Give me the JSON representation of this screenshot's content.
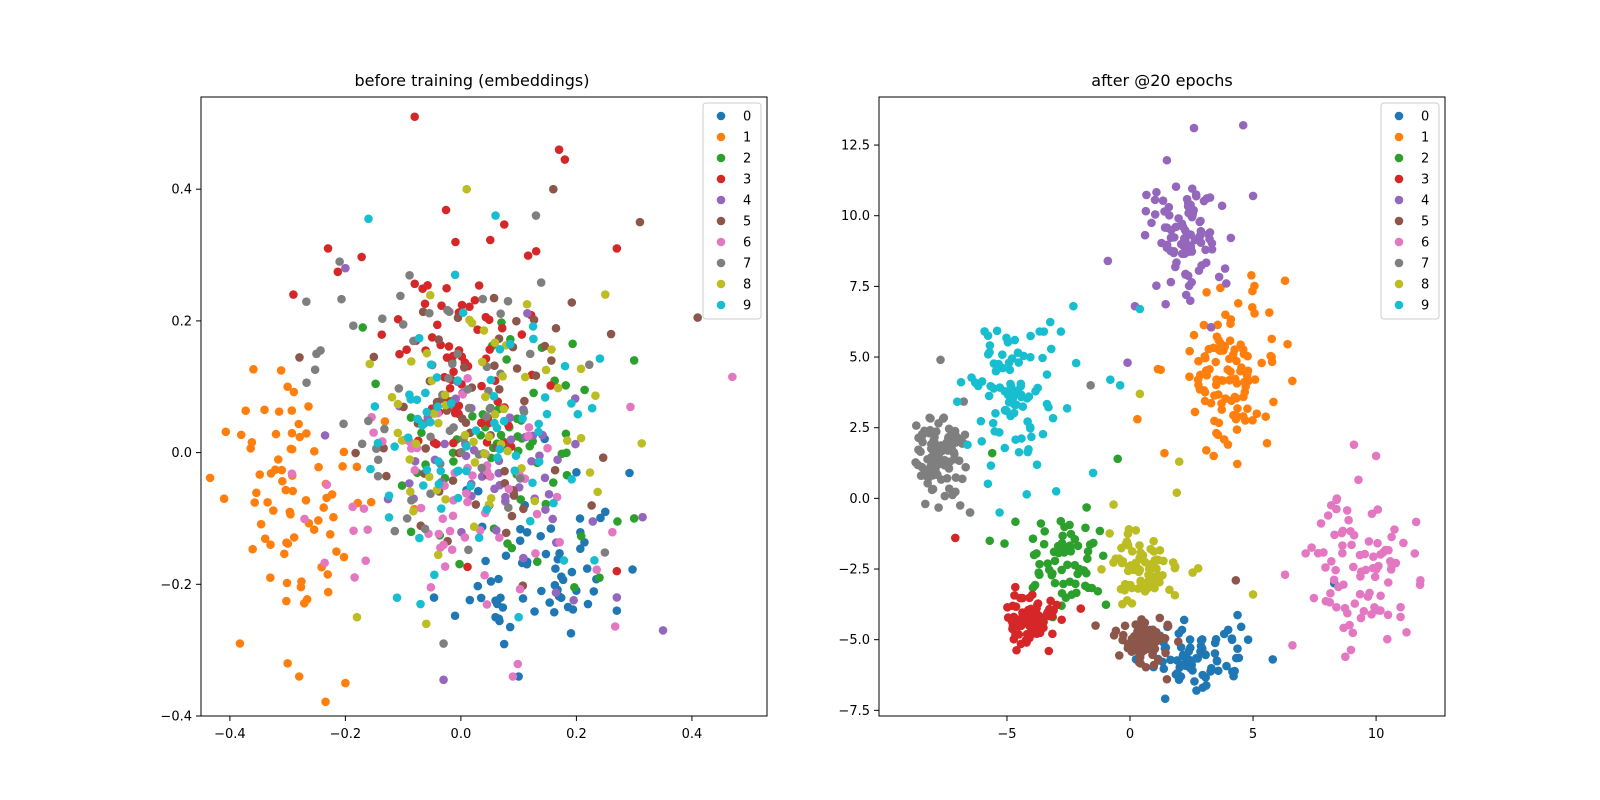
{
  "class_labels": [
    "0",
    "1",
    "2",
    "3",
    "4",
    "5",
    "6",
    "7",
    "8",
    "9"
  ],
  "colors": [
    "#1f77b4",
    "#ff7f0e",
    "#2ca02c",
    "#d62728",
    "#9467bd",
    "#8c564b",
    "#e377c2",
    "#7f7f7f",
    "#bcbd22",
    "#17becf"
  ],
  "chart_data": [
    {
      "type": "scatter",
      "title": "before training (embeddings)",
      "xlabel": "",
      "ylabel": "",
      "xlim": [
        -0.45,
        0.53
      ],
      "ylim": [
        -0.4,
        0.54
      ],
      "xticks": [
        -0.4,
        -0.2,
        0.0,
        0.2,
        0.4
      ],
      "xtick_labels": [
        "−0.4",
        "−0.2",
        "0.0",
        "0.2",
        "0.4"
      ],
      "yticks": [
        -0.4,
        -0.2,
        0.0,
        0.2,
        0.4
      ],
      "ytick_labels": [
        "−0.4",
        "−0.2",
        "0.0",
        "0.2",
        "0.4"
      ],
      "legend": "top-right",
      "series": [
        {
          "name": "0",
          "center": [
            0.13,
            -0.17
          ],
          "spread": [
            0.07,
            0.07
          ],
          "n": 60,
          "seed": 11,
          "points": [
            [
              0.2,
              -0.03
            ],
            [
              0.25,
              -0.09
            ],
            [
              0.22,
              -0.23
            ],
            [
              0.27,
              -0.24
            ],
            [
              0.1,
              -0.34
            ],
            [
              0.06,
              -0.25
            ]
          ]
        },
        {
          "name": "1",
          "center": [
            -0.28,
            -0.07
          ],
          "spread": [
            0.07,
            0.1
          ],
          "n": 75,
          "seed": 12,
          "points": [
            [
              -0.41,
              -0.07
            ],
            [
              -0.33,
              -0.19
            ],
            [
              -0.28,
              -0.34
            ],
            [
              -0.3,
              -0.32
            ],
            [
              -0.2,
              -0.35
            ],
            [
              -0.3,
              0.1
            ],
            [
              -0.34,
              0.065
            ]
          ]
        },
        {
          "name": "2",
          "center": [
            0.06,
            0.01
          ],
          "spread": [
            0.09,
            0.09
          ],
          "n": 60,
          "seed": 13,
          "points": [
            [
              0.3,
              -0.1
            ],
            [
              0.3,
              0.14
            ],
            [
              -0.17,
              0.19
            ],
            [
              0.24,
              -0.19
            ]
          ]
        },
        {
          "name": "3",
          "center": [
            0.02,
            0.15
          ],
          "spread": [
            0.08,
            0.1
          ],
          "n": 75,
          "seed": 14,
          "points": [
            [
              -0.08,
              0.51
            ],
            [
              0.17,
              0.46
            ],
            [
              0.18,
              0.445
            ],
            [
              -0.29,
              0.24
            ],
            [
              -0.23,
              0.31
            ],
            [
              0.27,
              0.31
            ],
            [
              0.27,
              -0.18
            ]
          ]
        },
        {
          "name": "4",
          "center": [
            0.08,
            -0.02
          ],
          "spread": [
            0.1,
            0.09
          ],
          "n": 55,
          "seed": 15,
          "points": [
            [
              0.35,
              -0.27
            ],
            [
              -0.2,
              0.28
            ],
            [
              0.27,
              -0.22
            ],
            [
              -0.03,
              -0.345
            ]
          ]
        },
        {
          "name": "5",
          "center": [
            0.03,
            0.05
          ],
          "spread": [
            0.1,
            0.1
          ],
          "n": 60,
          "seed": 16,
          "points": [
            [
              0.41,
              0.205
            ],
            [
              0.31,
              0.35
            ],
            [
              0.16,
              0.4
            ],
            [
              0.26,
              0.18
            ]
          ]
        },
        {
          "name": "6",
          "center": [
            -0.02,
            -0.1
          ],
          "spread": [
            0.12,
            0.08
          ],
          "n": 65,
          "seed": 17,
          "points": [
            [
              0.47,
              0.115
            ],
            [
              0.09,
              -0.34
            ],
            [
              -0.25,
              0.15
            ]
          ]
        },
        {
          "name": "7",
          "center": [
            -0.04,
            0.07
          ],
          "spread": [
            0.1,
            0.11
          ],
          "n": 60,
          "seed": 18,
          "points": [
            [
              -0.25,
              0.15
            ],
            [
              -0.21,
              0.29
            ],
            [
              0.13,
              0.36
            ],
            [
              -0.03,
              -0.29
            ]
          ]
        },
        {
          "name": "8",
          "center": [
            0.04,
            0.06
          ],
          "spread": [
            0.1,
            0.09
          ],
          "n": 55,
          "seed": 19,
          "points": [
            [
              0.25,
              0.24
            ],
            [
              0.01,
              0.4
            ],
            [
              -0.18,
              -0.25
            ],
            [
              -0.06,
              -0.26
            ]
          ]
        },
        {
          "name": "9",
          "center": [
            0.02,
            0.02
          ],
          "spread": [
            0.1,
            0.1
          ],
          "n": 70,
          "seed": 20,
          "points": [
            [
              -0.16,
              0.355
            ],
            [
              0.06,
              0.36
            ],
            [
              -0.01,
              0.27
            ],
            [
              0.1,
              -0.25
            ],
            [
              -0.07,
              -0.23
            ]
          ]
        }
      ]
    },
    {
      "type": "scatter",
      "title": "after @20 epochs",
      "xlabel": "",
      "ylabel": "",
      "xlim": [
        -10.2,
        12.8
      ],
      "ylim": [
        -7.7,
        14.2
      ],
      "xticks": [
        -5,
        0,
        5,
        10
      ],
      "xtick_labels": [
        "−5",
        "0",
        "5",
        "10"
      ],
      "yticks": [
        -7.5,
        -5.0,
        -2.5,
        0.0,
        2.5,
        5.0,
        7.5,
        10.0,
        12.5
      ],
      "ytick_labels": [
        "−7.5",
        "−5.0",
        "−2.5",
        "0.0",
        "2.5",
        "5.0",
        "7.5",
        "10.0",
        "12.5"
      ],
      "legend": "top-right",
      "series": [
        {
          "name": "0",
          "center": [
            2.6,
            -5.6
          ],
          "spread": [
            1.1,
            0.6
          ],
          "n": 75,
          "seed": 31,
          "points": [
            [
              5.8,
              -5.7
            ],
            [
              4.8,
              -5.0
            ],
            [
              2.7,
              -6.8
            ],
            [
              8.3,
              -3.0
            ]
          ]
        },
        {
          "name": "1",
          "center": [
            3.9,
            4.6
          ],
          "spread": [
            1.0,
            1.4
          ],
          "n": 110,
          "seed": 32,
          "points": [
            [
              6.3,
              7.7
            ],
            [
              1.4,
              1.6
            ],
            [
              3.1,
              1.7
            ],
            [
              0.3,
              2.8
            ],
            [
              4.6,
              2.9
            ]
          ]
        },
        {
          "name": "2",
          "center": [
            -2.6,
            -2.4
          ],
          "spread": [
            0.7,
            0.8
          ],
          "n": 65,
          "seed": 33,
          "points": [
            [
              -6.5,
              -0.5
            ],
            [
              -5.7,
              -1.5
            ],
            [
              -5.1,
              -1.6
            ],
            [
              -0.5,
              1.4
            ],
            [
              -5.6,
              1.6
            ]
          ]
        },
        {
          "name": "3",
          "center": [
            -4.1,
            -4.3
          ],
          "spread": [
            0.55,
            0.45
          ],
          "n": 90,
          "seed": 34,
          "points": [
            [
              -7.1,
              -1.4
            ],
            [
              -3.3,
              -5.4
            ],
            [
              -2.0,
              -3.9
            ]
          ]
        },
        {
          "name": "4",
          "center": [
            2.3,
            9.3
          ],
          "spread": [
            0.8,
            1.1
          ],
          "n": 95,
          "seed": 35,
          "points": [
            [
              2.6,
              13.1
            ],
            [
              4.6,
              13.2
            ],
            [
              -0.9,
              8.4
            ],
            [
              -0.1,
              4.8
            ],
            [
              5.0,
              10.7
            ],
            [
              0.2,
              6.8
            ]
          ]
        },
        {
          "name": "5",
          "center": [
            0.6,
            -5.0
          ],
          "spread": [
            0.5,
            0.4
          ],
          "n": 80,
          "seed": 36,
          "points": [
            [
              -1.4,
              -4.5
            ],
            [
              1.5,
              -6.4
            ],
            [
              4.3,
              -2.9
            ]
          ]
        },
        {
          "name": "6",
          "center": [
            9.5,
            -2.5
          ],
          "spread": [
            1.0,
            1.3
          ],
          "n": 85,
          "seed": 37,
          "points": [
            [
              9.1,
              1.9
            ],
            [
              10.0,
              1.5
            ],
            [
              6.6,
              -5.2
            ],
            [
              11.8,
              -2.9
            ],
            [
              6.3,
              -2.7
            ]
          ]
        },
        {
          "name": "7",
          "center": [
            -7.8,
            1.6
          ],
          "spread": [
            0.55,
            0.7
          ],
          "n": 95,
          "seed": 38,
          "points": [
            [
              -7.7,
              4.9
            ],
            [
              -6.5,
              -0.5
            ],
            [
              -6.9,
              -0.25
            ],
            [
              -1.6,
              4.0
            ]
          ]
        },
        {
          "name": "8",
          "center": [
            0.5,
            -2.4
          ],
          "spread": [
            0.7,
            0.6
          ],
          "n": 80,
          "seed": 39,
          "points": [
            [
              2.0,
              1.3
            ],
            [
              1.9,
              0.2
            ],
            [
              0.4,
              3.7
            ],
            [
              5.0,
              -3.4
            ]
          ]
        },
        {
          "name": "9",
          "center": [
            -4.8,
            3.7
          ],
          "spread": [
            0.9,
            1.2
          ],
          "n": 95,
          "seed": 40,
          "points": [
            [
              -2.3,
              6.8
            ],
            [
              -0.4,
              4.0
            ],
            [
              -0.8,
              4.2
            ],
            [
              -5.3,
              -0.5
            ],
            [
              -1.5,
              0.9
            ],
            [
              0.4,
              6.7
            ],
            [
              -3.0,
              0.25
            ]
          ]
        }
      ]
    }
  ]
}
